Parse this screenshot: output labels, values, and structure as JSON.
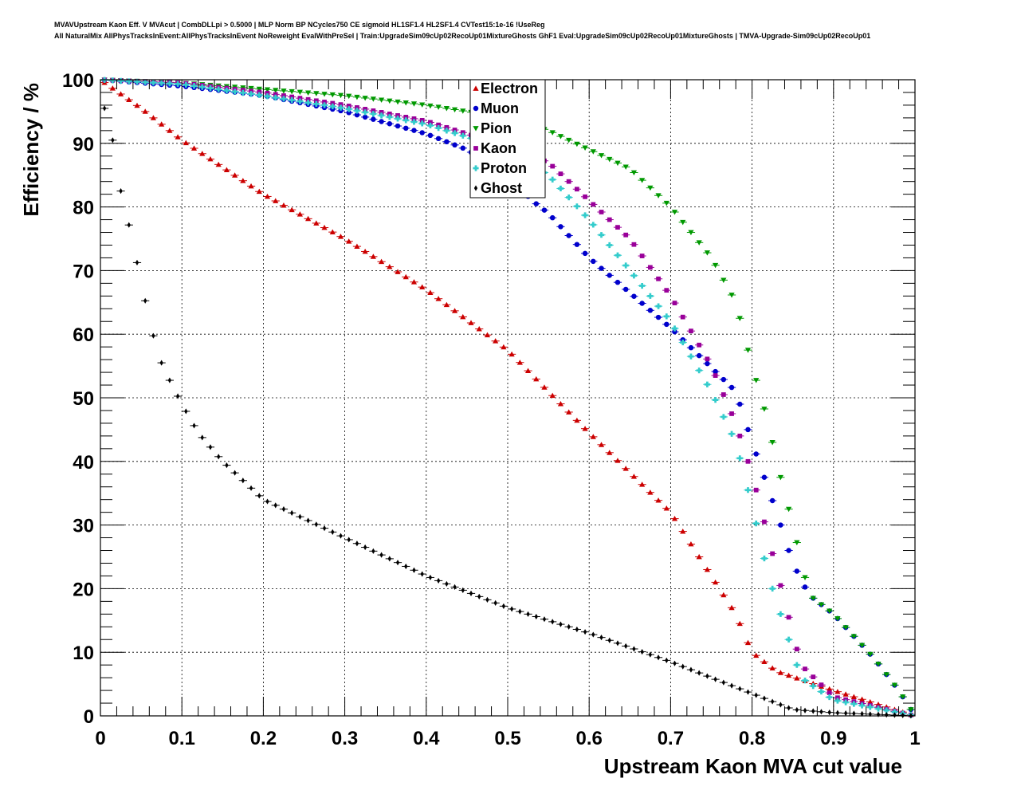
{
  "title": {
    "line1": "MVAVUpstream Kaon Eff. V MVAcut | CombDLLpi > 0.5000 | MLP Norm BP NCycles750 CE sigmoid HL1SF1.4 HL2SF1.4 CVTest15:1e-16 !UseReg",
    "line2": "All NaturalMix AllPhysTracksInEvent:AllPhysTracksInEvent NoReweight EvalWithPreSel | Train:UpgradeSim09cUp02RecoUp01MixtureGhosts GhF1 Eval:UpgradeSim09cUp02RecoUp01MixtureGhosts | TMVA-Upgrade-Sim09cUp02RecoUp01"
  },
  "chart_data": {
    "type": "scatter",
    "xlabel": "Upstream Kaon MVA cut value",
    "ylabel": "Efficiency / %",
    "xlim": [
      0,
      1
    ],
    "ylim": [
      0,
      100
    ],
    "grid": true,
    "legend_position": "top-center",
    "x_ticks": [
      "0",
      "0.1",
      "0.2",
      "0.3",
      "0.4",
      "0.5",
      "0.6",
      "0.7",
      "0.8",
      "0.9",
      "1"
    ],
    "y_ticks": [
      "0",
      "10",
      "20",
      "30",
      "40",
      "50",
      "60",
      "70",
      "80",
      "90",
      "100"
    ],
    "x_step": 0.01,
    "series": [
      {
        "name": "Electron",
        "color": "#cc0000",
        "marker": "triangle-up",
        "knots": [
          [
            0,
            100
          ],
          [
            0.05,
            95.5
          ],
          [
            0.1,
            90.5
          ],
          [
            0.2,
            82
          ],
          [
            0.3,
            75
          ],
          [
            0.4,
            67
          ],
          [
            0.5,
            57.5
          ],
          [
            0.6,
            44.5
          ],
          [
            0.7,
            32
          ],
          [
            0.75,
            22
          ],
          [
            0.78,
            16
          ],
          [
            0.8,
            10
          ],
          [
            0.83,
            7
          ],
          [
            0.9,
            4
          ],
          [
            0.95,
            2
          ],
          [
            1,
            0
          ]
        ]
      },
      {
        "name": "Muon",
        "color": "#0000cc",
        "marker": "circle",
        "knots": [
          [
            0,
            100
          ],
          [
            0.1,
            99
          ],
          [
            0.2,
            97.5
          ],
          [
            0.3,
            95
          ],
          [
            0.4,
            91.5
          ],
          [
            0.45,
            89
          ],
          [
            0.5,
            85
          ],
          [
            0.53,
            81
          ],
          [
            0.55,
            79
          ],
          [
            0.6,
            72
          ],
          [
            0.7,
            61
          ],
          [
            0.78,
            51
          ],
          [
            0.8,
            43
          ],
          [
            0.83,
            32
          ],
          [
            0.85,
            24
          ],
          [
            0.87,
            19
          ],
          [
            0.9,
            16
          ],
          [
            0.95,
            9
          ],
          [
            0.98,
            4
          ],
          [
            1,
            0
          ]
        ]
      },
      {
        "name": "Pion",
        "color": "#009900",
        "marker": "triangle-down",
        "knots": [
          [
            0,
            100
          ],
          [
            0.1,
            99.5
          ],
          [
            0.2,
            98.5
          ],
          [
            0.3,
            97.5
          ],
          [
            0.4,
            96
          ],
          [
            0.5,
            94
          ],
          [
            0.55,
            92
          ],
          [
            0.6,
            89
          ],
          [
            0.65,
            86
          ],
          [
            0.7,
            80
          ],
          [
            0.75,
            72
          ],
          [
            0.78,
            65
          ],
          [
            0.8,
            55
          ],
          [
            0.82,
            46
          ],
          [
            0.83,
            40
          ],
          [
            0.85,
            30
          ],
          [
            0.87,
            19
          ],
          [
            0.9,
            16
          ],
          [
            0.95,
            9
          ],
          [
            0.98,
            4
          ],
          [
            1,
            0
          ]
        ]
      },
      {
        "name": "Kaon",
        "color": "#990099",
        "marker": "square",
        "knots": [
          [
            0,
            100
          ],
          [
            0.1,
            99.5
          ],
          [
            0.2,
            98
          ],
          [
            0.3,
            96
          ],
          [
            0.4,
            93.5
          ],
          [
            0.5,
            89.5
          ],
          [
            0.55,
            87
          ],
          [
            0.6,
            81
          ],
          [
            0.65,
            75
          ],
          [
            0.7,
            66
          ],
          [
            0.75,
            55
          ],
          [
            0.78,
            46
          ],
          [
            0.8,
            38
          ],
          [
            0.82,
            28
          ],
          [
            0.84,
            18
          ],
          [
            0.86,
            8
          ],
          [
            0.9,
            3
          ],
          [
            1,
            0
          ]
        ]
      },
      {
        "name": "Proton",
        "color": "#33cccc",
        "marker": "cross",
        "knots": [
          [
            0,
            100
          ],
          [
            0.1,
            99.3
          ],
          [
            0.2,
            97.5
          ],
          [
            0.3,
            95.5
          ],
          [
            0.4,
            93
          ],
          [
            0.5,
            89
          ],
          [
            0.55,
            85
          ],
          [
            0.6,
            78
          ],
          [
            0.65,
            70
          ],
          [
            0.7,
            62
          ],
          [
            0.75,
            51
          ],
          [
            0.78,
            43
          ],
          [
            0.8,
            33
          ],
          [
            0.82,
            22
          ],
          [
            0.84,
            14
          ],
          [
            0.86,
            6
          ],
          [
            0.9,
            2.5
          ],
          [
            1,
            0
          ]
        ]
      },
      {
        "name": "Ghost",
        "color": "#000000",
        "marker": "diamond",
        "knots": [
          [
            0,
            98
          ],
          [
            0.015,
            90.5
          ],
          [
            0.025,
            82.5
          ],
          [
            0.04,
            74.5
          ],
          [
            0.05,
            68
          ],
          [
            0.06,
            62.5
          ],
          [
            0.07,
            57
          ],
          [
            0.08,
            54
          ],
          [
            0.1,
            49
          ],
          [
            0.12,
            44.5
          ],
          [
            0.15,
            40
          ],
          [
            0.2,
            34
          ],
          [
            0.3,
            28
          ],
          [
            0.4,
            22
          ],
          [
            0.5,
            17
          ],
          [
            0.6,
            13
          ],
          [
            0.7,
            8.5
          ],
          [
            0.8,
            3.5
          ],
          [
            0.85,
            1
          ],
          [
            0.9,
            0.5
          ],
          [
            1,
            0
          ]
        ]
      }
    ]
  }
}
